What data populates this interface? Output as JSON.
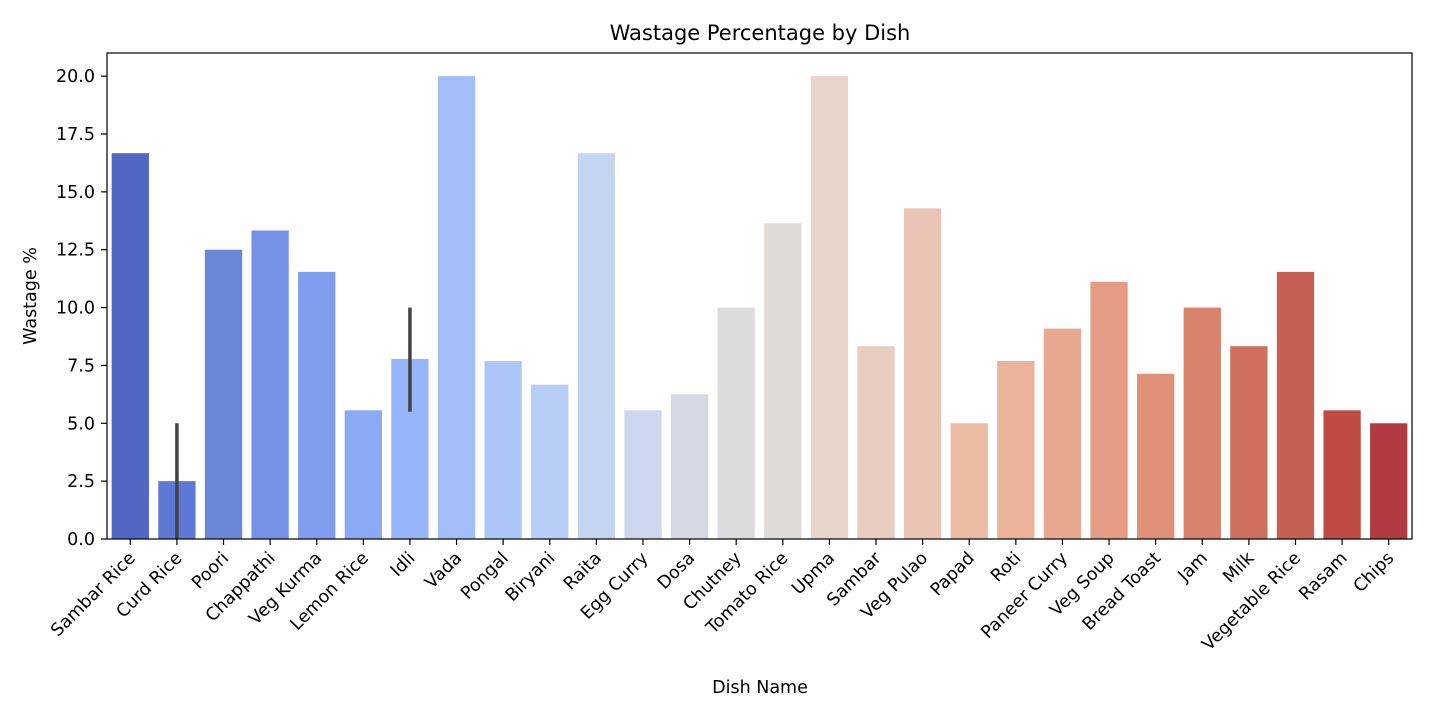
{
  "chart_data": {
    "type": "bar",
    "title": "Wastage Percentage by Dish",
    "xlabel": "Dish Name",
    "ylabel": "Wastage %",
    "ylim": [
      0,
      21
    ],
    "yticks": [
      0.0,
      2.5,
      5.0,
      7.5,
      10.0,
      12.5,
      15.0,
      17.5,
      20.0
    ],
    "ytick_labels": [
      "0.0",
      "2.5",
      "5.0",
      "7.5",
      "10.0",
      "12.5",
      "15.0",
      "17.5",
      "20.0"
    ],
    "grid": false,
    "categories": [
      "Sambar Rice",
      "Curd Rice",
      "Poori",
      "Chappathi",
      "Veg Kurma",
      "Lemon Rice",
      "Idli",
      "Vada",
      "Pongal",
      "Biryani",
      "Raita",
      "Egg Curry",
      "Dosa",
      "Chutney",
      "Tomato Rice",
      "Upma",
      "Sambar",
      "Veg Pulao",
      "Papad",
      "Roti",
      "Paneer Curry",
      "Veg Soup",
      "Bread Toast",
      "Jam",
      "Milk",
      "Vegetable Rice",
      "Rasam",
      "Chips"
    ],
    "values": [
      16.67,
      2.5,
      12.5,
      13.33,
      11.54,
      5.56,
      7.78,
      20.0,
      7.69,
      6.67,
      16.67,
      5.56,
      6.25,
      10.0,
      13.64,
      20.0,
      8.33,
      14.29,
      5.0,
      7.69,
      9.09,
      11.11,
      7.14,
      10.0,
      8.33,
      11.54,
      5.56,
      5.0
    ],
    "error_bars": [
      {
        "category": "Curd Rice",
        "low": 0.0,
        "high": 5.0
      },
      {
        "category": "Idli",
        "low": 5.5,
        "high": 10.0
      }
    ],
    "colors": [
      "#5266c4",
      "#5e78d6",
      "#6a86d9",
      "#7592e6",
      "#809df0",
      "#8aaaf6",
      "#97b5fa",
      "#a2bdf8",
      "#adc6f8",
      "#b8cef6",
      "#c3d5f1",
      "#cdd7ee",
      "#d5d9e3",
      "#dcdcdf",
      "#e1dbd8",
      "#e7d5cc",
      "#e9cdc1",
      "#eac4b5",
      "#ecbba4",
      "#ebb39a",
      "#e9a890",
      "#e49d84",
      "#e09077",
      "#d8826b",
      "#cf705c",
      "#c56052",
      "#bf4b44",
      "#b03a3f"
    ],
    "error_color": "#424242"
  }
}
